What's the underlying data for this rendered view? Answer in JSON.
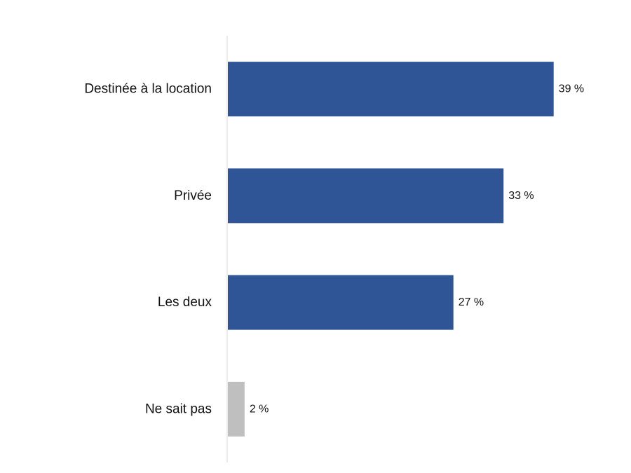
{
  "chart_data": {
    "type": "bar",
    "orientation": "horizontal",
    "categories": [
      "Destinée à la location",
      "Privée",
      "Les deux",
      "Ne sait pas"
    ],
    "values": [
      39,
      33,
      27,
      2
    ],
    "value_labels": [
      "39 %",
      "33 %",
      "27 %",
      "2 %"
    ],
    "bar_colors": [
      "#2F5597",
      "#2F5597",
      "#2F5597",
      "#BFBFBF"
    ],
    "axis_color": "#D9D9D9",
    "title": "",
    "xlabel": "",
    "ylabel": "",
    "xlim": [
      0,
      47
    ],
    "grid": false,
    "legend": "none"
  }
}
